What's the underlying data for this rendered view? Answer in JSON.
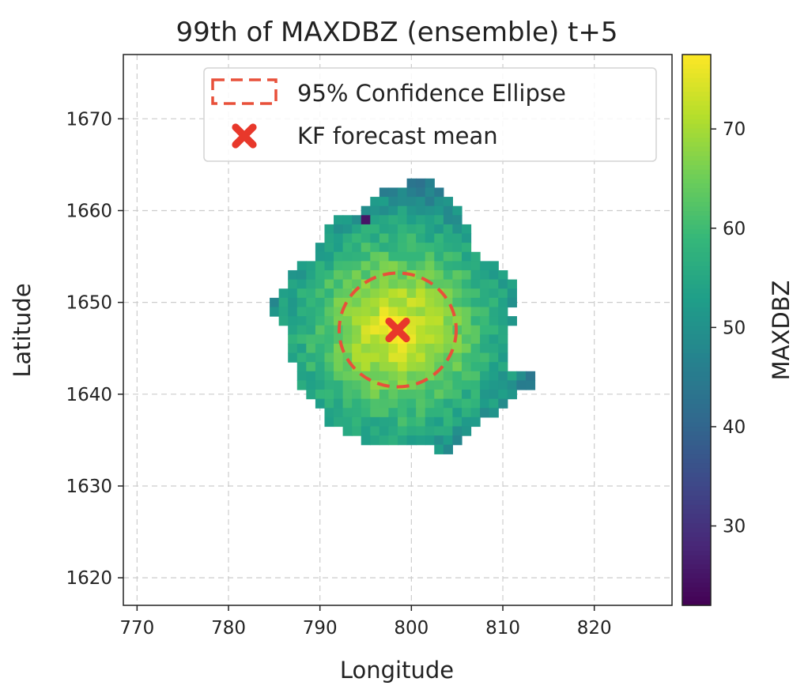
{
  "chart_data": {
    "type": "heatmap",
    "title": "99th of MAXDBZ (ensemble) t+5",
    "xlabel": "Longitude",
    "ylabel": "Latitude",
    "xlim": [
      768.5,
      828.5
    ],
    "ylim": [
      1617,
      1677
    ],
    "xticks": [
      770,
      780,
      790,
      800,
      810,
      820
    ],
    "yticks": [
      1620,
      1630,
      1640,
      1650,
      1660,
      1670
    ],
    "grid": true,
    "colorbar": {
      "label": "MAXDBZ",
      "colormap": "viridis",
      "range": [
        22,
        77.5
      ],
      "ticks": [
        30,
        40,
        50,
        60,
        70
      ]
    },
    "field": {
      "center": [
        798.5,
        1647
      ],
      "rows": [
        {
          "y": 1663,
          "x0": 800,
          "x1": 802
        },
        {
          "y": 1662,
          "x0": 797,
          "x1": 803
        },
        {
          "y": 1661,
          "x0": 796,
          "x1": 804
        },
        {
          "y": 1660,
          "x0": 795,
          "x1": 805
        },
        {
          "y": 1659,
          "x0": 792,
          "x1": 805
        },
        {
          "y": 1658,
          "x0": 791,
          "x1": 806
        },
        {
          "y": 1657,
          "x0": 791,
          "x1": 806
        },
        {
          "y": 1656,
          "x0": 790,
          "x1": 806
        },
        {
          "y": 1655,
          "x0": 790,
          "x1": 807
        },
        {
          "y": 1654,
          "x0": 788,
          "x1": 809
        },
        {
          "y": 1653,
          "x0": 787,
          "x1": 810
        },
        {
          "y": 1652,
          "x0": 787,
          "x1": 811
        },
        {
          "y": 1651,
          "x0": 786,
          "x1": 811
        },
        {
          "y": 1650,
          "x0": 785,
          "x1": 811
        },
        {
          "y": 1649,
          "x0": 785,
          "x1": 810
        },
        {
          "y": 1648,
          "x0": 786,
          "x1": 811
        },
        {
          "y": 1647,
          "x0": 787,
          "x1": 810
        },
        {
          "y": 1646,
          "x0": 787,
          "x1": 810
        },
        {
          "y": 1645,
          "x0": 787,
          "x1": 810
        },
        {
          "y": 1644,
          "x0": 787,
          "x1": 810
        },
        {
          "y": 1643,
          "x0": 788,
          "x1": 810
        },
        {
          "y": 1642,
          "x0": 788,
          "x1": 813
        },
        {
          "y": 1641,
          "x0": 788,
          "x1": 813
        },
        {
          "y": 1640,
          "x0": 789,
          "x1": 811
        },
        {
          "y": 1639,
          "x0": 790,
          "x1": 810
        },
        {
          "y": 1638,
          "x0": 791,
          "x1": 809
        },
        {
          "y": 1637,
          "x0": 791,
          "x1": 807
        },
        {
          "y": 1636,
          "x0": 793,
          "x1": 806
        },
        {
          "y": 1635,
          "x0": 795,
          "x1": 805
        },
        {
          "y": 1634,
          "x0": 803,
          "x1": 804
        }
      ],
      "outlier": {
        "x": 795,
        "y": 1659,
        "value": 25
      }
    },
    "ellipse": {
      "label": "95% Confidence Ellipse",
      "center": [
        798.5,
        1647
      ],
      "semi_axes": [
        6.4,
        6.2
      ],
      "color": "#e8503a"
    },
    "forecast_mean": {
      "label": "KF forecast mean",
      "x": 798.5,
      "y": 1647,
      "color": "#e8382b"
    },
    "legend": {
      "position": "upper-right"
    }
  }
}
